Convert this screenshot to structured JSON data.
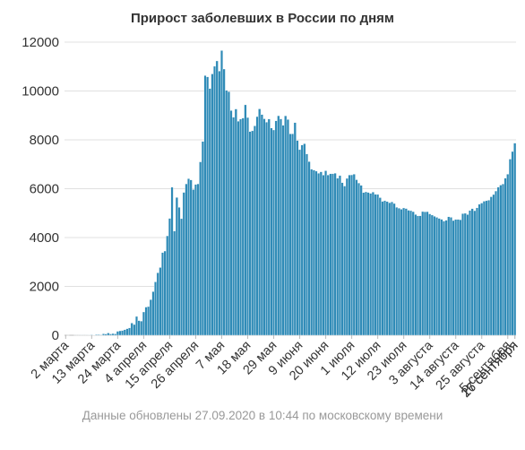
{
  "chart_data": {
    "type": "bar",
    "title": "Прирост заболевших в России по дням",
    "xlabel": "",
    "ylabel": "",
    "ylim": [
      0,
      12000
    ],
    "yticks": [
      0,
      2000,
      4000,
      6000,
      8000,
      10000,
      12000
    ],
    "grid": true,
    "legend": false,
    "start_date": "2020-03-02",
    "xtick_labels": [
      "2 марта",
      "13 марта",
      "24 марта",
      "4 апреля",
      "15 апреля",
      "26 апреля",
      "7 мая",
      "18 мая",
      "29 мая",
      "9 июня",
      "20 июня",
      "1 июля",
      "12 июля",
      "23 июля",
      "3 августа",
      "14 августа",
      "25 августа",
      "5 сентября",
      "16 сентября",
      "27 сентября"
    ],
    "values": [
      0,
      1,
      0,
      0,
      2,
      1,
      3,
      4,
      2,
      4,
      6,
      20,
      14,
      30,
      28,
      19,
      60,
      52,
      93,
      54,
      71,
      57,
      163,
      182,
      196,
      228,
      270,
      302,
      500,
      440,
      771,
      601,
      582,
      954,
      1154,
      1175,
      1459,
      1786,
      2186,
      2558,
      2774,
      3388,
      3448,
      4070,
      4785,
      6060,
      4268,
      5642,
      5236,
      4774,
      5849,
      6198,
      6411,
      6361,
      5966,
      6175,
      6198,
      7099,
      7933,
      10633,
      10581,
      10102,
      10699,
      11012,
      11231,
      10817,
      11656,
      10899,
      10028,
      9974,
      9200,
      8926,
      9263,
      8764,
      8849,
      8894,
      9434,
      8915,
      8338,
      8371,
      8572,
      8952,
      9268,
      9035,
      8863,
      8726,
      8855,
      8485,
      8404,
      8779,
      8987,
      8858,
      8595,
      8985,
      8835,
      8246,
      8248,
      8706,
      7972,
      7600,
      7790,
      7843,
      7425,
      7113,
      6800,
      6760,
      6719,
      6632,
      6693,
      6556,
      6736,
      6562,
      6611,
      6615,
      6635,
      6428,
      6537,
      6248,
      6109,
      6422,
      6562,
      6566,
      6595,
      6368,
      6234,
      6139,
      5842,
      5871,
      5848,
      5811,
      5862,
      5771,
      5765,
      5635,
      5482,
      5509,
      5475,
      5427,
      5462,
      5394,
      5241,
      5204,
      5159,
      5212,
      5189,
      5118,
      5102,
      5061,
      4945,
      4890,
      4892,
      5065,
      5057,
      5061,
      4969,
      4921,
      4870,
      4828,
      4785,
      4748,
      4676,
      4711,
      4852,
      4829,
      4696,
      4741,
      4744,
      4729,
      4980,
      4993,
      4941,
      5110,
      5185,
      5099,
      5218,
      5363,
      5413,
      5488,
      5509,
      5529,
      5670,
      5762,
      5905,
      6065,
      6148,
      6196,
      6431,
      6595,
      7212,
      7523,
      7867
    ],
    "annotation": "Данные обновлены 27.09.2020 в 10:44 по московскому времени",
    "bar_color": "#2f8bb7",
    "bar_stroke": "#ffffff",
    "grid_color": "#e0e0e0",
    "axis_color": "#bbbbbb"
  }
}
